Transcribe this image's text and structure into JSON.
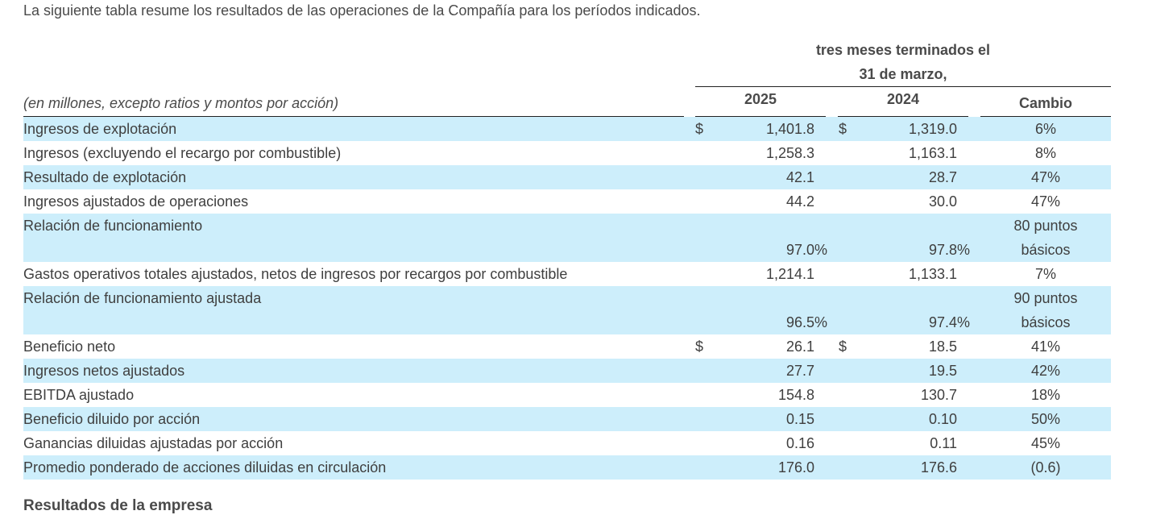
{
  "intro_text": "La siguiente tabla resume los resultados de las operaciones de la Compañía para los períodos indicados.",
  "header": {
    "period_line1": "tres meses terminados el",
    "period_line2": "31 de marzo,",
    "caption": "(en millones, excepto ratios y montos por acción)",
    "col_2025": "2025",
    "col_2024": "2024",
    "col_change": "Cambio"
  },
  "rows": [
    {
      "label": "Ingresos de explotación",
      "dollar": "$",
      "v2025": "1,401.8",
      "v2024": "1,319.0",
      "change": "6%"
    },
    {
      "label": "Ingresos (excluyendo el recargo por combustible)",
      "dollar": "",
      "v2025": "1,258.3",
      "v2024": "1,163.1",
      "change": "8%"
    },
    {
      "label": "Resultado de explotación",
      "dollar": "",
      "v2025": "42.1",
      "v2024": "28.7",
      "change": "47%"
    },
    {
      "label": "Ingresos ajustados de operaciones",
      "dollar": "",
      "v2025": "44.2",
      "v2024": "30.0",
      "change": "47%"
    },
    {
      "label": "Relación de funcionamiento",
      "dollar": "",
      "v2025": "97.0%",
      "v2024": "97.8%",
      "change_line1": "80 puntos",
      "change_line2": "básicos"
    },
    {
      "label": "Gastos operativos totales ajustados, netos de ingresos por recargos por combustible",
      "dollar": "",
      "v2025": "1,214.1",
      "v2024": "1,133.1",
      "change": "7%"
    },
    {
      "label": "Relación de funcionamiento ajustada",
      "dollar": "",
      "v2025": "96.5%",
      "v2024": "97.4%",
      "change_line1": "90 puntos",
      "change_line2": "básicos"
    },
    {
      "label": "Beneficio neto",
      "dollar": "$",
      "v2025": "26.1",
      "v2024": "18.5",
      "change": "41%"
    },
    {
      "label": "Ingresos netos ajustados",
      "dollar": "",
      "v2025": "27.7",
      "v2024": "19.5",
      "change": "42%"
    },
    {
      "label": "EBITDA ajustado",
      "dollar": "",
      "v2025": "154.8",
      "v2024": "130.7",
      "change": "18%"
    },
    {
      "label": "Beneficio diluido por acción",
      "dollar": "",
      "v2025": "0.15",
      "v2024": "0.10",
      "change": "50%"
    },
    {
      "label": "Ganancias diluidas ajustadas por acción",
      "dollar": "",
      "v2025": "0.16",
      "v2024": "0.11",
      "change": "45%"
    },
    {
      "label": "Promedio ponderado de acciones diluidas en circulación",
      "dollar": "",
      "v2025": "176.0",
      "v2024": "176.6",
      "change": "(0.6)"
    }
  ],
  "section_heading": "Resultados de la empresa"
}
